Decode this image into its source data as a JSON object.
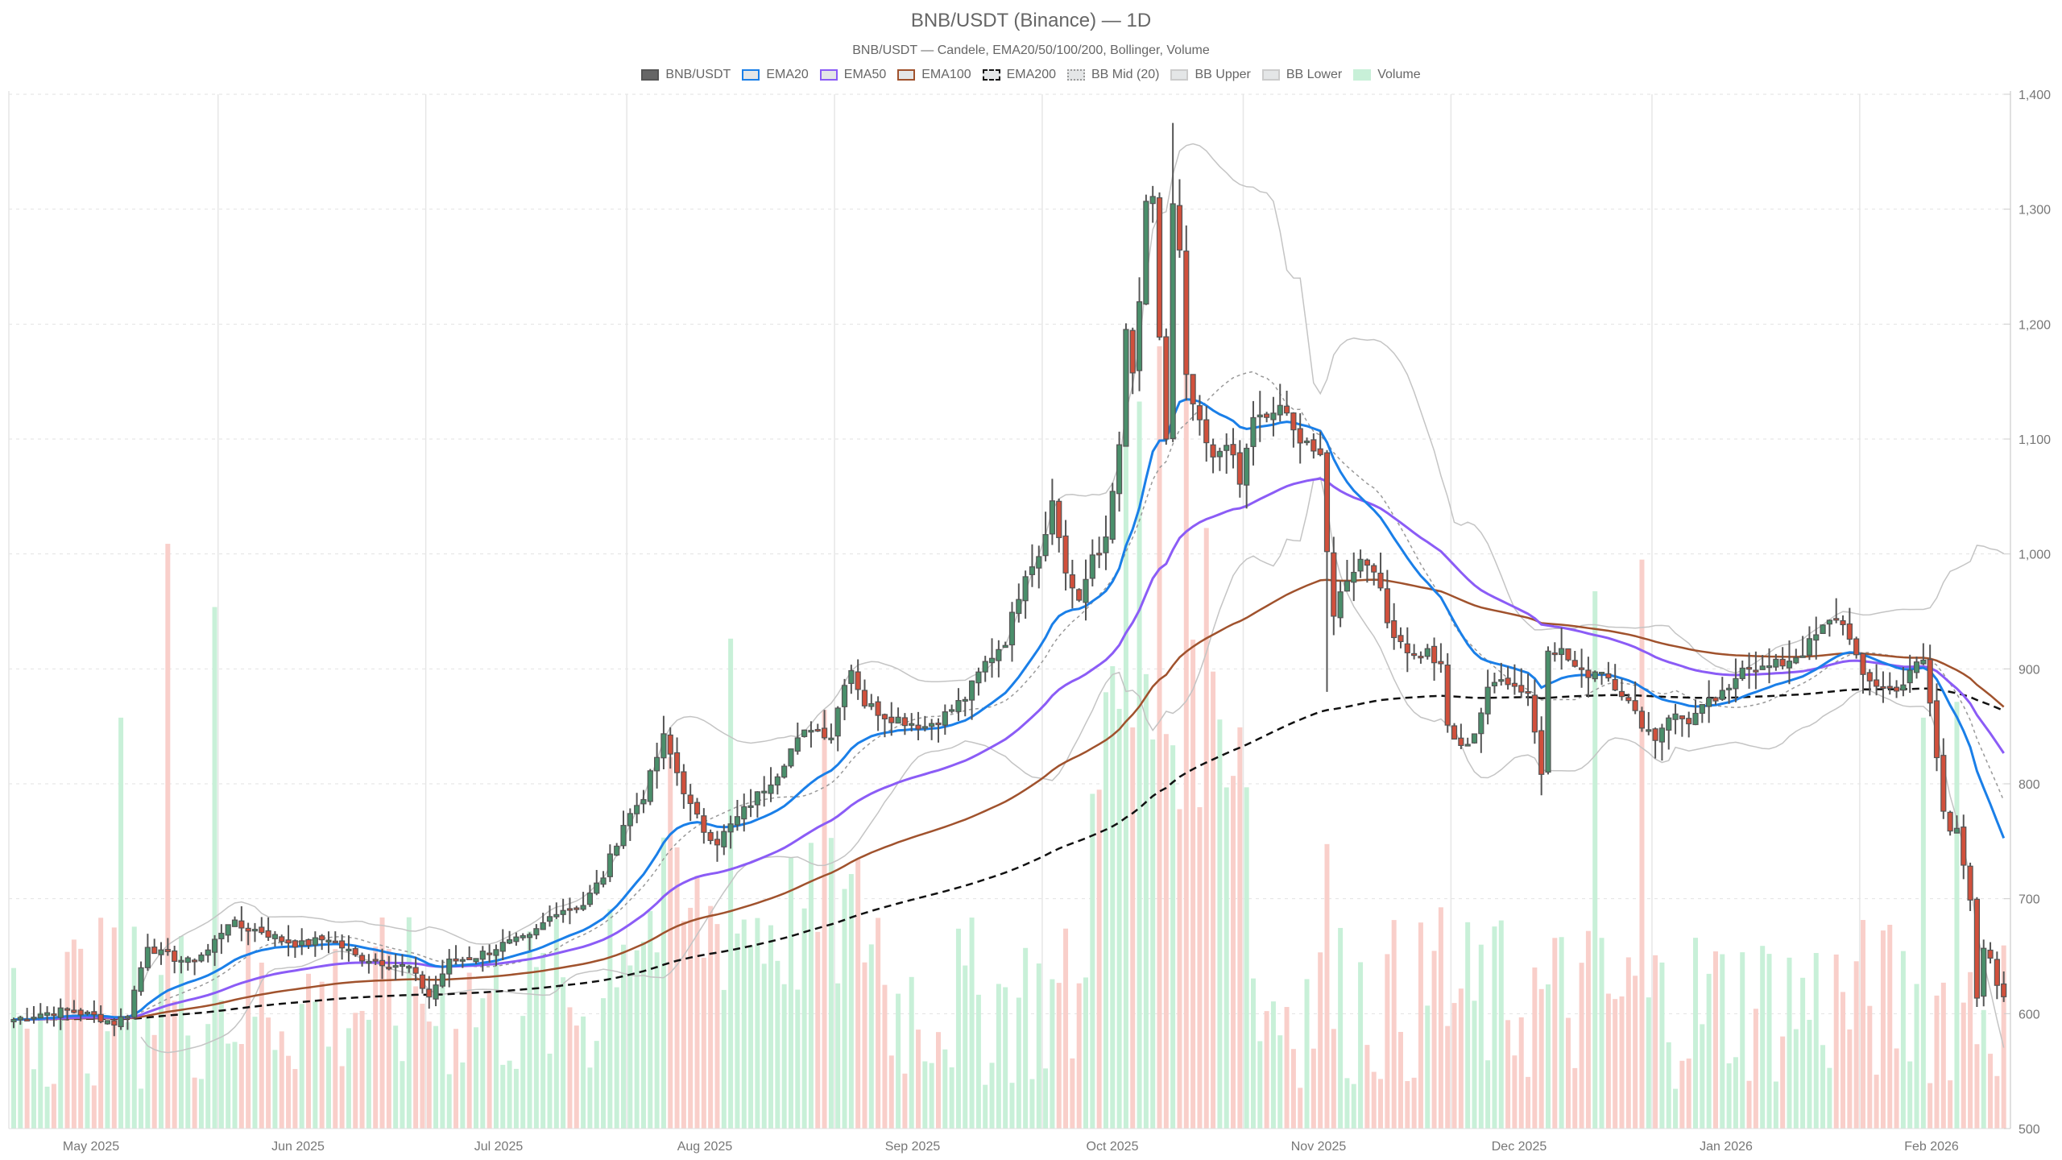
{
  "header": {
    "title": "BNB/USDT (Binance) — 1D",
    "subtitle": "BNB/USDT — Candele, EMA20/50/100/200, Bollinger, Volume"
  },
  "legend": [
    {
      "label": "BNB/USDT",
      "fill": "#666666",
      "border": "#555555",
      "style": "solid"
    },
    {
      "label": "EMA20",
      "fill": "#e4e6e7",
      "border": "#1a7fe8",
      "style": "solid"
    },
    {
      "label": "EMA50",
      "fill": "#e4e6e7",
      "border": "#8b5cf6",
      "style": "solid"
    },
    {
      "label": "EMA100",
      "fill": "#e4e6e7",
      "border": "#a0522d",
      "style": "solid"
    },
    {
      "label": "EMA200",
      "fill": "#e4e6e7",
      "border": "#111111",
      "style": "dashed"
    },
    {
      "label": "BB Mid (20)",
      "fill": "#e4e6e7",
      "border": "#999999",
      "style": "dotted"
    },
    {
      "label": "BB Upper",
      "fill": "#e4e6e7",
      "border": "#cccccc",
      "style": "solid"
    },
    {
      "label": "BB Lower",
      "fill": "#e4e6e7",
      "border": "#cccccc",
      "style": "solid"
    },
    {
      "label": "Volume",
      "fill": "#c8f0d8",
      "border": "#c8f0d8",
      "style": "solid"
    }
  ],
  "colors": {
    "up": "#4a8f6b",
    "down": "#d1503c",
    "wick": "#555555",
    "ema20": "#1a7fe8",
    "ema50": "#8b5cf6",
    "ema100": "#a0522d",
    "ema200": "#111111",
    "bb_mid": "#999999",
    "bb_band": "#c4c4c4",
    "vol_up": "#c8f0d8",
    "vol_down": "#f9cfca",
    "grid": "#e2e2e2"
  },
  "chart_data": {
    "type": "candlestick",
    "title": "BNB/USDT (Binance) — 1D",
    "subtitle": "BNB/USDT — Candele, EMA20/50/100/200, Bollinger, Volume",
    "xlabel": "",
    "ylabel": "",
    "ylim": [
      500,
      1400
    ],
    "y_ticks": [
      "500",
      "600",
      "700",
      "800",
      "900",
      "1,000",
      "1,100",
      "1,200",
      "1,300",
      "1,400"
    ],
    "y_tick_values": [
      500,
      600,
      700,
      800,
      900,
      1000,
      1100,
      1200,
      1300,
      1400
    ],
    "x_ticks": [
      "May 2025",
      "Jun 2025",
      "Jul 2025",
      "Aug 2025",
      "Sep 2025",
      "Oct 2025",
      "Nov 2025",
      "Dec 2025",
      "Jan 2026",
      "Feb 2026"
    ],
    "x_tick_day_index": [
      11,
      42,
      72,
      103,
      134,
      164,
      195,
      225,
      256,
      287
    ],
    "start_date": "2025-04-20",
    "num_days": 298,
    "series": [
      "BNB/USDT",
      "EMA20",
      "EMA50",
      "EMA100",
      "EMA200",
      "BB Mid (20)",
      "BB Upper",
      "BB Lower",
      "Volume"
    ],
    "close_waypoints": [
      [
        0,
        595
      ],
      [
        4,
        600
      ],
      [
        8,
        603
      ],
      [
        12,
        598
      ],
      [
        15,
        592
      ],
      [
        17,
        600
      ],
      [
        20,
        660
      ],
      [
        22,
        652
      ],
      [
        26,
        645
      ],
      [
        29,
        655
      ],
      [
        32,
        680
      ],
      [
        34,
        675
      ],
      [
        37,
        672
      ],
      [
        40,
        664
      ],
      [
        43,
        660
      ],
      [
        47,
        666
      ],
      [
        51,
        650
      ],
      [
        55,
        645
      ],
      [
        59,
        640
      ],
      [
        62,
        615
      ],
      [
        65,
        645
      ],
      [
        69,
        650
      ],
      [
        73,
        660
      ],
      [
        77,
        666
      ],
      [
        81,
        690
      ],
      [
        85,
        695
      ],
      [
        88,
        720
      ],
      [
        91,
        765
      ],
      [
        94,
        790
      ],
      [
        97,
        840
      ],
      [
        99,
        810
      ],
      [
        101,
        780
      ],
      [
        103,
        760
      ],
      [
        105,
        750
      ],
      [
        108,
        770
      ],
      [
        111,
        790
      ],
      [
        114,
        810
      ],
      [
        116,
        830
      ],
      [
        119,
        850
      ],
      [
        122,
        842
      ],
      [
        124,
        890
      ],
      [
        125,
        900
      ],
      [
        127,
        870
      ],
      [
        130,
        860
      ],
      [
        133,
        855
      ],
      [
        136,
        850
      ],
      [
        139,
        860
      ],
      [
        142,
        875
      ],
      [
        145,
        905
      ],
      [
        148,
        925
      ],
      [
        151,
        985
      ],
      [
        153,
        1000
      ],
      [
        155,
        1045
      ],
      [
        157,
        985
      ],
      [
        159,
        955
      ],
      [
        161,
        1000
      ],
      [
        163,
        1010
      ],
      [
        165,
        1095
      ],
      [
        166,
        1190
      ],
      [
        167,
        1155
      ],
      [
        168,
        1220
      ],
      [
        169,
        1300
      ],
      [
        170,
        1305
      ],
      [
        171,
        1190
      ],
      [
        172,
        1100
      ],
      [
        173,
        1302
      ],
      [
        174,
        1260
      ],
      [
        175,
        1150
      ],
      [
        177,
        1110
      ],
      [
        179,
        1080
      ],
      [
        181,
        1100
      ],
      [
        183,
        1060
      ],
      [
        185,
        1120
      ],
      [
        187,
        1115
      ],
      [
        189,
        1130
      ],
      [
        191,
        1105
      ],
      [
        193,
        1100
      ],
      [
        195,
        1080
      ],
      [
        196,
        1000
      ],
      [
        197,
        950
      ],
      [
        199,
        980
      ],
      [
        201,
        995
      ],
      [
        203,
        990
      ],
      [
        205,
        940
      ],
      [
        207,
        925
      ],
      [
        209,
        910
      ],
      [
        211,
        915
      ],
      [
        213,
        900
      ],
      [
        214,
        850
      ],
      [
        216,
        830
      ],
      [
        218,
        845
      ],
      [
        220,
        880
      ],
      [
        222,
        895
      ],
      [
        224,
        885
      ],
      [
        226,
        880
      ],
      [
        228,
        810
      ],
      [
        229,
        920
      ],
      [
        231,
        915
      ],
      [
        234,
        895
      ],
      [
        237,
        900
      ],
      [
        240,
        880
      ],
      [
        242,
        860
      ],
      [
        245,
        840
      ],
      [
        247,
        860
      ],
      [
        250,
        855
      ],
      [
        253,
        870
      ],
      [
        256,
        880
      ],
      [
        258,
        905
      ],
      [
        261,
        900
      ],
      [
        264,
        905
      ],
      [
        267,
        915
      ],
      [
        270,
        935
      ],
      [
        272,
        945
      ],
      [
        274,
        930
      ],
      [
        276,
        890
      ],
      [
        279,
        885
      ],
      [
        281,
        880
      ],
      [
        283,
        900
      ],
      [
        285,
        905
      ],
      [
        286,
        870
      ],
      [
        288,
        775
      ],
      [
        289,
        760
      ],
      [
        290,
        765
      ],
      [
        292,
        700
      ],
      [
        293,
        610
      ],
      [
        294,
        655
      ],
      [
        295,
        645
      ],
      [
        296,
        625
      ],
      [
        297,
        612
      ]
    ],
    "volume_spikes": [
      [
        16,
        0.52
      ],
      [
        23,
        0.74
      ],
      [
        30,
        0.66
      ],
      [
        60,
        0.18
      ],
      [
        107,
        0.62
      ],
      [
        98,
        0.47
      ],
      [
        121,
        0.53
      ],
      [
        166,
        0.88
      ],
      [
        168,
        0.92
      ],
      [
        171,
        0.99
      ],
      [
        175,
        0.96
      ],
      [
        178,
        0.76
      ],
      [
        196,
        0.36
      ],
      [
        213,
        0.28
      ],
      [
        236,
        0.68
      ],
      [
        243,
        0.72
      ],
      [
        285,
        0.52
      ],
      [
        290,
        0.54
      ]
    ],
    "last_values": {
      "close": 612,
      "ema20": 720,
      "ema50": 803,
      "ema100": 852,
      "ema200": 855,
      "bb_mid": 747,
      "bb_upper": 968,
      "bb_lower": 525
    }
  }
}
